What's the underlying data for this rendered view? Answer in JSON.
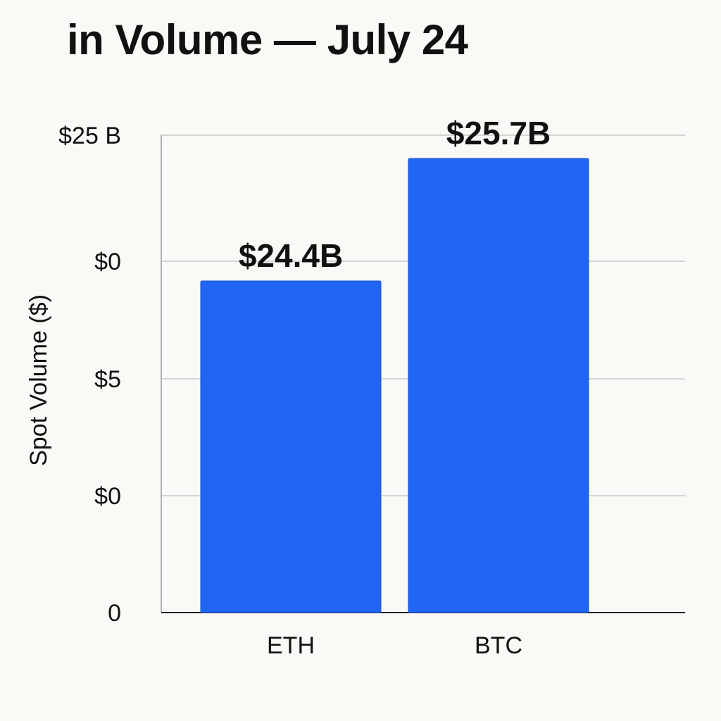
{
  "chart_data": {
    "type": "bar",
    "title": "in Volume — July 24",
    "xlabel": "",
    "ylabel": "Spot Volume ($)",
    "categories": [
      "ETH",
      "BTC"
    ],
    "values": [
      24.4,
      25.7
    ],
    "data_labels": [
      "$24.4B",
      "$25.7B"
    ],
    "ytick_labels": [
      "0",
      "$0",
      "$5",
      "$0",
      "$25 B"
    ],
    "grid": true,
    "legend": "none",
    "colors": {
      "bar": "#2166f3",
      "grid": "#c8c8c8",
      "axis": "#222222",
      "background": "#fbf9f6"
    }
  }
}
